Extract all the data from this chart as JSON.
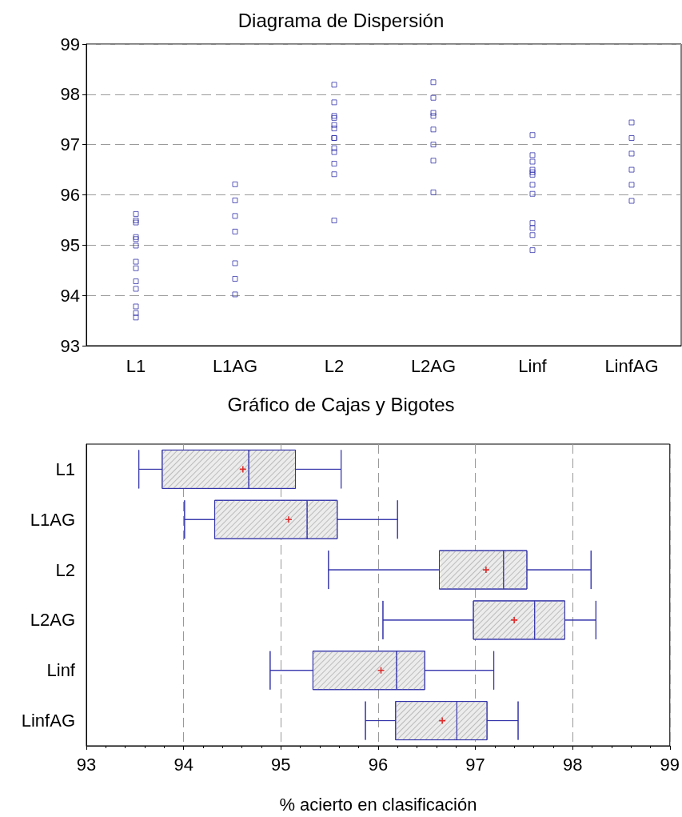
{
  "chart_data": [
    {
      "type": "scatter",
      "title": "Diagrama de Dispersión",
      "categories": [
        "L1",
        "L1AG",
        "L2",
        "L2AG",
        "Linf",
        "LinfAG"
      ],
      "series": [
        {
          "color": "#3333aa",
          "x": [
            "L1",
            "L1",
            "L1",
            "L1",
            "L1",
            "L1",
            "L1",
            "L1",
            "L1",
            "L1",
            "L1",
            "L1",
            "L1",
            "L1AG",
            "L1AG",
            "L1AG",
            "L1AG",
            "L1AG",
            "L1AG",
            "L1AG",
            "L2",
            "L2",
            "L2",
            "L2",
            "L2",
            "L2",
            "L2",
            "L2",
            "L2",
            "L2",
            "L2",
            "L2",
            "L2",
            "L2AG",
            "L2AG",
            "L2AG",
            "L2AG",
            "L2AG",
            "L2AG",
            "L2AG",
            "L2AG",
            "Linf",
            "Linf",
            "Linf",
            "Linf",
            "Linf",
            "Linf",
            "Linf",
            "Linf",
            "Linf",
            "Linf",
            "Linf",
            "Linf",
            "LinfAG",
            "LinfAG",
            "LinfAG",
            "LinfAG",
            "LinfAG",
            "LinfAG"
          ],
          "values": [
            95.62,
            95.49,
            95.45,
            95.16,
            95.12,
            94.99,
            94.67,
            94.54,
            94.28,
            94.13,
            93.78,
            93.65,
            93.56,
            96.21,
            95.89,
            95.58,
            95.27,
            94.64,
            94.33,
            94.02,
            98.19,
            97.84,
            97.57,
            97.53,
            97.39,
            97.32,
            97.13,
            96.93,
            96.85,
            96.62,
            96.41,
            95.49,
            97.13,
            98.24,
            97.93,
            97.63,
            97.57,
            97.3,
            97.0,
            96.68,
            96.05,
            97.19,
            96.79,
            96.66,
            96.5,
            96.45,
            96.4,
            96.2,
            96.02,
            95.44,
            95.34,
            95.2,
            94.9,
            97.44,
            97.13,
            96.82,
            96.5,
            96.2,
            95.88
          ]
        }
      ],
      "marker": "square",
      "ylim": [
        93,
        99
      ],
      "yticks": [
        93,
        94,
        95,
        96,
        97,
        98,
        99
      ],
      "grid": "y"
    },
    {
      "type": "box",
      "title": "Gráfico de Cajas y Bigotes",
      "xlabel": "% acierto en clasificación",
      "orientation": "horizontal",
      "categories": [
        "L1",
        "L1AG",
        "L2",
        "L2AG",
        "Linf",
        "LinfAG"
      ],
      "series": [
        {
          "color": "#3333aa",
          "boxes": [
            {
              "low": 93.54,
              "q1": 93.78,
              "median": 94.67,
              "q3": 95.15,
              "high": 95.62,
              "mean": 94.61
            },
            {
              "low": 94.01,
              "q1": 94.32,
              "median": 95.27,
              "q3": 95.58,
              "high": 96.2,
              "mean": 95.08
            },
            {
              "low": 95.49,
              "q1": 96.63,
              "median": 97.29,
              "q3": 97.53,
              "high": 98.19,
              "mean": 97.11
            },
            {
              "low": 96.05,
              "q1": 96.98,
              "median": 97.61,
              "q3": 97.92,
              "high": 98.24,
              "mean": 97.4
            },
            {
              "low": 94.89,
              "q1": 95.33,
              "median": 96.19,
              "q3": 96.48,
              "high": 97.19,
              "mean": 96.03
            },
            {
              "low": 95.87,
              "q1": 96.18,
              "median": 96.81,
              "q3": 97.12,
              "high": 97.44,
              "mean": 96.66
            }
          ]
        }
      ],
      "xlim": [
        93,
        99
      ],
      "xticks": [
        93,
        94,
        95,
        96,
        97,
        98,
        99
      ],
      "grid": "x"
    }
  ]
}
